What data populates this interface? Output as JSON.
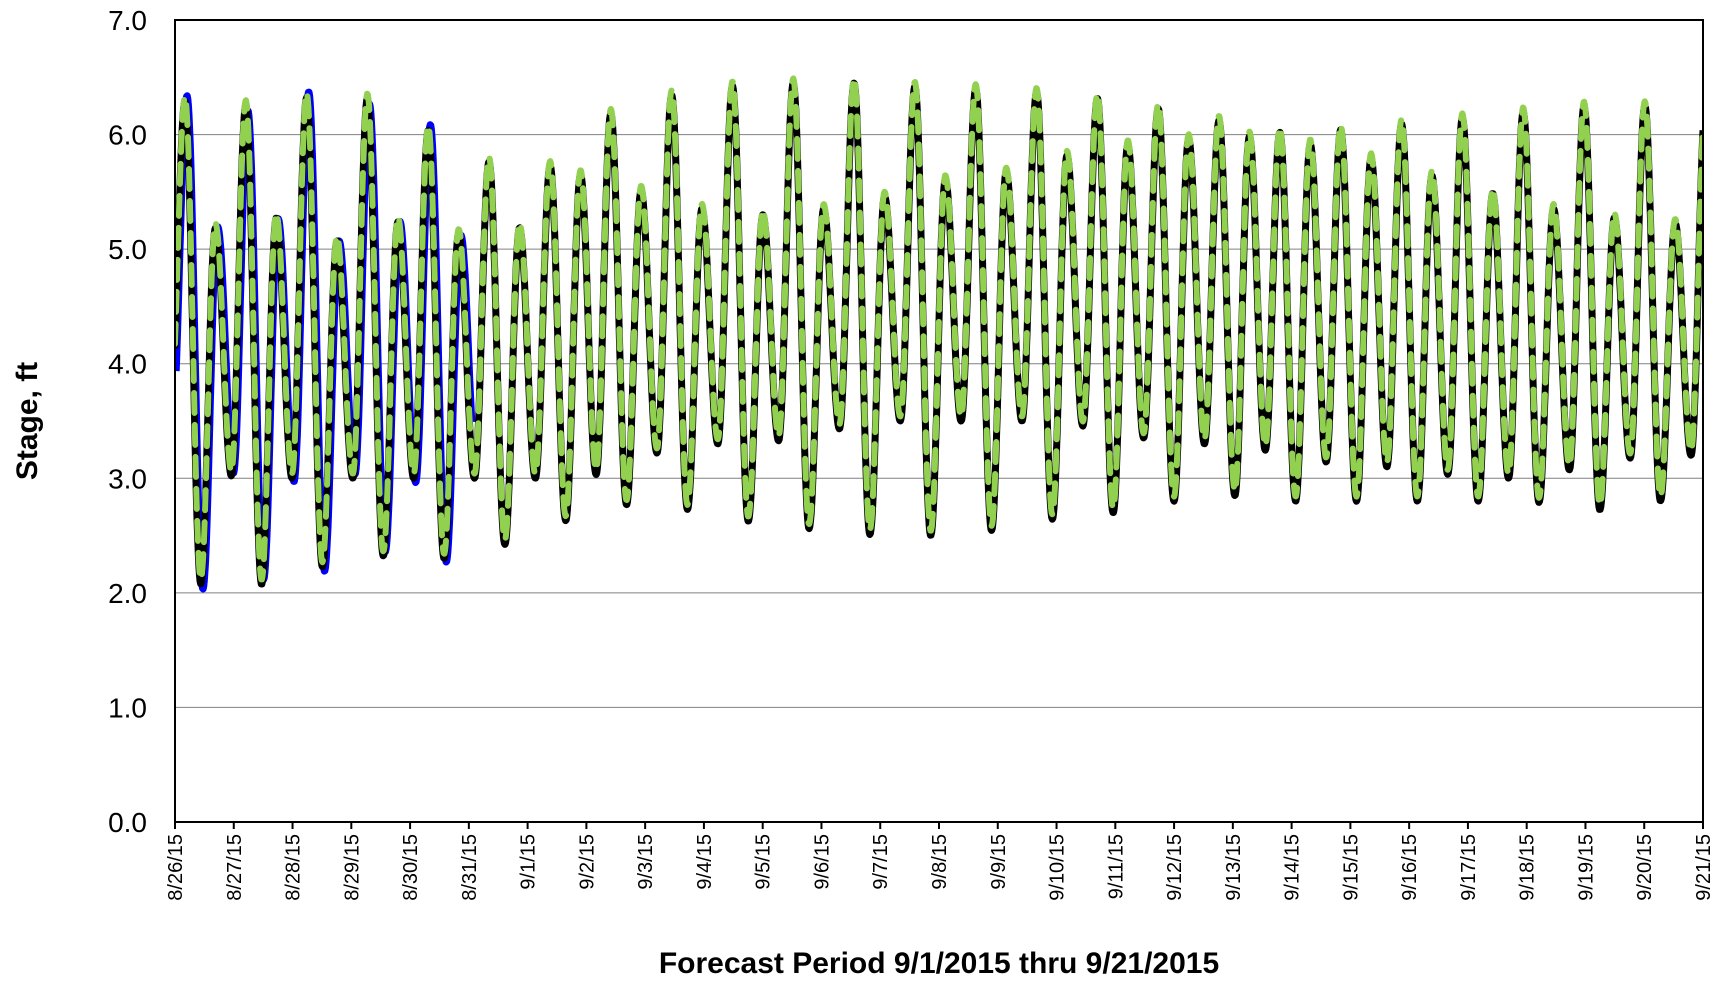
{
  "chart_data": {
    "type": "line",
    "title": "",
    "xlabel": "Forecast Period 9/1/2015 thru 9/21/2015",
    "ylabel": "Stage, ft",
    "ylim": [
      0,
      7
    ],
    "yticks": [
      "0.0",
      "1.0",
      "2.0",
      "3.0",
      "4.0",
      "5.0",
      "6.0",
      "7.0"
    ],
    "x_start": "8/26/15",
    "x_end": "9/21/15",
    "xticks": [
      "8/26/15",
      "8/27/15",
      "8/28/15",
      "8/29/15",
      "8/30/15",
      "8/31/15",
      "9/1/15",
      "9/2/15",
      "9/3/15",
      "9/4/15",
      "9/5/15",
      "9/6/15",
      "9/7/15",
      "9/8/15",
      "9/9/15",
      "9/10/15",
      "9/11/15",
      "9/12/15",
      "9/13/15",
      "9/14/15",
      "9/15/15",
      "9/16/15",
      "9/17/15",
      "9/18/15",
      "9/19/15",
      "9/20/15",
      "9/21/15"
    ],
    "grid": "horizontal",
    "legend": "none",
    "series": [
      {
        "color": "#0000ff",
        "style": "solid",
        "x": [
          "8/26/15",
          "8/26/15 12:00",
          "8/27/15",
          "8/27/15 12:00",
          "8/28/15",
          "8/28/15 12:00",
          "8/29/15",
          "8/29/15 12:00",
          "8/30/15",
          "8/30/15 12:00",
          "8/31/15"
        ],
        "highs": [
          6.2,
          6.15,
          6.25,
          6.0,
          5.8,
          5.6
        ],
        "lows": [
          2.5,
          2.3,
          2.5,
          2.8,
          2.9,
          2.6
        ],
        "x_highs": [
          "8/26/15 04:00",
          "8/27/15 06:00",
          "8/28/15 07:00",
          "8/29/15 08:00",
          "8/30/15 09:00",
          "8/30/15 21:00"
        ],
        "x_lows": [
          "8/26/15 11:00",
          "8/27/15 12:00",
          "8/28/15 13:00",
          "8/29/15 14:00",
          "8/30/15 15:00",
          "8/31/15 02:00"
        ]
      },
      {
        "color": "#000000",
        "style": "solid",
        "highs": [
          6.3,
          6.25,
          6.3,
          6.4,
          6.1,
          5.9,
          5.5,
          6.1,
          6.3,
          6.4,
          6.45,
          6.45,
          6.45,
          6.4,
          6.4,
          6.35,
          6.3,
          6.2,
          6.1,
          6.0,
          6.05,
          6.1,
          6.15,
          6.2,
          6.25,
          6.25,
          6.28
        ],
        "lows": [
          2.1,
          2.05,
          2.1,
          2.35,
          2.3,
          2.3,
          2.5,
          2.7,
          2.8,
          2.7,
          2.6,
          2.55,
          2.5,
          2.5,
          2.55,
          2.65,
          2.7,
          2.8,
          2.85,
          2.8,
          2.8,
          2.8,
          2.8,
          2.8,
          2.75,
          2.65,
          3.2
        ],
        "secondary_highs": [
          5.15,
          5.2,
          5.3,
          5.0,
          5.3,
          5.1,
          5.2,
          5.7,
          5.5,
          5.35,
          5.3,
          5.35,
          5.45,
          5.6,
          5.65,
          5.8,
          5.9,
          5.95,
          6.0,
          5.95,
          5.85,
          5.7,
          5.55,
          5.4,
          5.3,
          5.25,
          5.2
        ],
        "secondary_lows": [
          3.5,
          3.0,
          3.0,
          3.0,
          3.0,
          3.0,
          3.0,
          3.0,
          3.2,
          3.3,
          3.3,
          3.4,
          3.5,
          3.5,
          3.5,
          3.5,
          3.4,
          3.3,
          3.3,
          3.2,
          3.1,
          3.1,
          3.0,
          3.0,
          3.1,
          3.2,
          3.2
        ]
      },
      {
        "color": "#92d050",
        "style": "dashed"
      }
    ]
  }
}
